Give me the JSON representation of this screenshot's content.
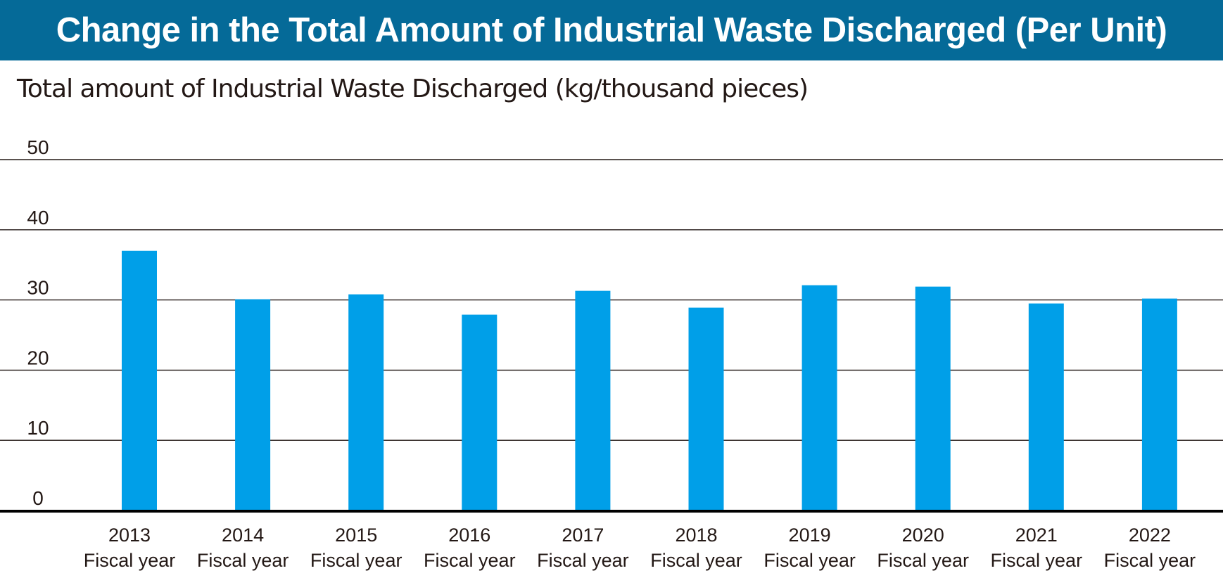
{
  "header": {
    "title": "Change in the Total Amount of Industrial Waste Discharged (Per Unit)"
  },
  "colors": {
    "title_bar": "#056a98",
    "bar": "#009fe8",
    "grid": "#231815",
    "axis": "#000000"
  },
  "chart_data": {
    "type": "bar",
    "title": "",
    "xlabel": "",
    "ylabel": "Total amount of Industrial Waste Discharged (kg/thousand pieces)",
    "ylim": [
      0,
      50
    ],
    "yticks": [
      0,
      10,
      20,
      30,
      40,
      50
    ],
    "grid": true,
    "categories": [
      [
        "2013",
        "Fiscal year"
      ],
      [
        "2014",
        "Fiscal year"
      ],
      [
        "2015",
        "Fiscal year"
      ],
      [
        "2016",
        "Fiscal year"
      ],
      [
        "2017",
        "Fiscal year"
      ],
      [
        "2018",
        "Fiscal year"
      ],
      [
        "2019",
        "Fiscal year"
      ],
      [
        "2020",
        "Fiscal year"
      ],
      [
        "2021",
        "Fiscal year"
      ],
      [
        "2022",
        "Fiscal year"
      ]
    ],
    "values": [
      37.0,
      30.1,
      30.8,
      27.9,
      31.3,
      28.9,
      32.1,
      31.9,
      29.5,
      30.2
    ]
  }
}
